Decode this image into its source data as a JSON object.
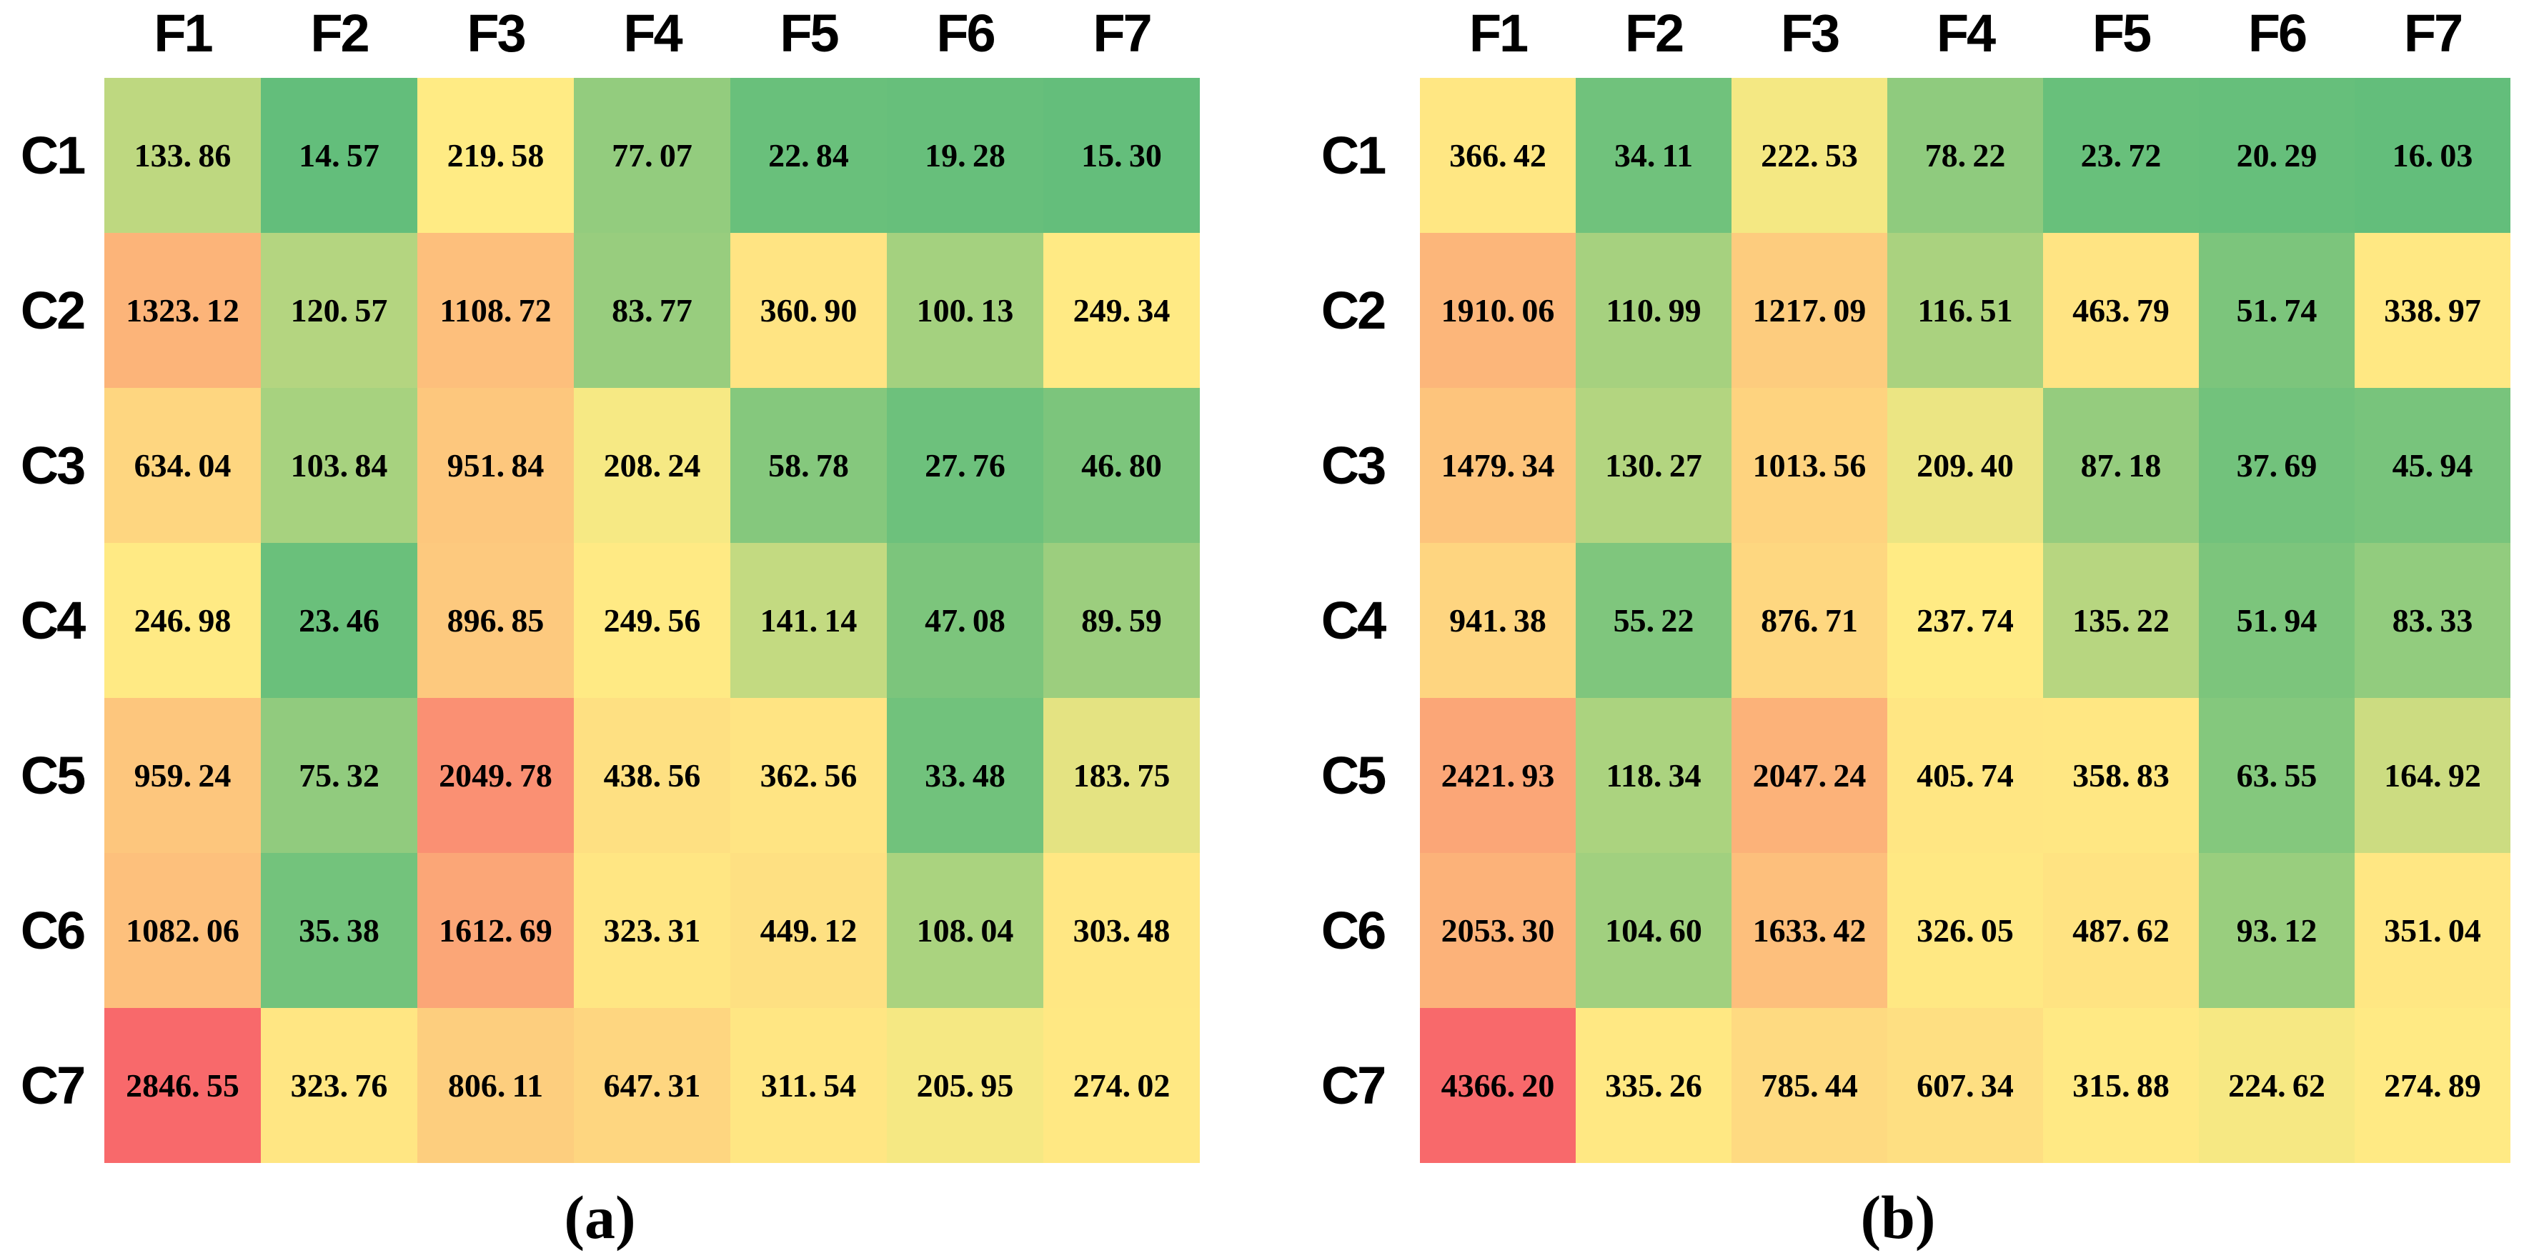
{
  "chart_data": [
    {
      "type": "heatmap",
      "caption": "(a)",
      "x_labels": [
        "F1",
        "F2",
        "F3",
        "F4",
        "F5",
        "F6",
        "F7"
      ],
      "y_labels": [
        "C1",
        "C2",
        "C3",
        "C4",
        "C5",
        "C6",
        "C7"
      ],
      "values": [
        [
          133.86,
          14.57,
          219.58,
          77.07,
          22.84,
          19.28,
          15.3
        ],
        [
          1323.12,
          120.57,
          1108.72,
          83.77,
          360.9,
          100.13,
          249.34
        ],
        [
          634.04,
          103.84,
          951.84,
          208.24,
          58.78,
          27.76,
          46.8
        ],
        [
          246.98,
          23.46,
          896.85,
          249.56,
          141.14,
          47.08,
          89.59
        ],
        [
          959.24,
          75.32,
          2049.78,
          438.56,
          362.56,
          33.48,
          183.75
        ],
        [
          1082.06,
          35.38,
          1612.69,
          323.31,
          449.12,
          108.04,
          303.48
        ],
        [
          2846.55,
          323.76,
          806.11,
          647.31,
          311.54,
          205.95,
          274.02
        ]
      ],
      "value_decimals": 2,
      "colorscale": {
        "low": "#63BE7B",
        "mid": "#FFEB84",
        "high": "#F8696B",
        "low_anchor": "min",
        "mid_anchor": "median",
        "high_anchor": "max"
      },
      "text_color": "#000000",
      "grid_lines": false,
      "legend": "none"
    },
    {
      "type": "heatmap",
      "caption": "(b)",
      "x_labels": [
        "F1",
        "F2",
        "F3",
        "F4",
        "F5",
        "F6",
        "F7"
      ],
      "y_labels": [
        "C1",
        "C2",
        "C3",
        "C4",
        "C5",
        "C6",
        "C7"
      ],
      "values": [
        [
          366.42,
          34.11,
          222.53,
          78.22,
          23.72,
          20.29,
          16.03
        ],
        [
          1910.06,
          110.99,
          1217.09,
          116.51,
          463.79,
          51.74,
          338.97
        ],
        [
          1479.34,
          130.27,
          1013.56,
          209.4,
          87.18,
          37.69,
          45.94
        ],
        [
          941.38,
          55.22,
          876.71,
          237.74,
          135.22,
          51.94,
          83.33
        ],
        [
          2421.93,
          118.34,
          2047.24,
          405.74,
          358.83,
          63.55,
          164.92
        ],
        [
          2053.3,
          104.6,
          1633.42,
          326.05,
          487.62,
          93.12,
          351.04
        ],
        [
          4366.2,
          335.26,
          785.44,
          607.34,
          315.88,
          224.62,
          274.89
        ]
      ],
      "value_decimals": 2,
      "colorscale": {
        "low": "#63BE7B",
        "mid": "#FFEB84",
        "high": "#F8696B",
        "low_anchor": "min",
        "mid_anchor": "median",
        "high_anchor": "max"
      },
      "text_color": "#000000",
      "grid_lines": false,
      "legend": "none"
    }
  ]
}
